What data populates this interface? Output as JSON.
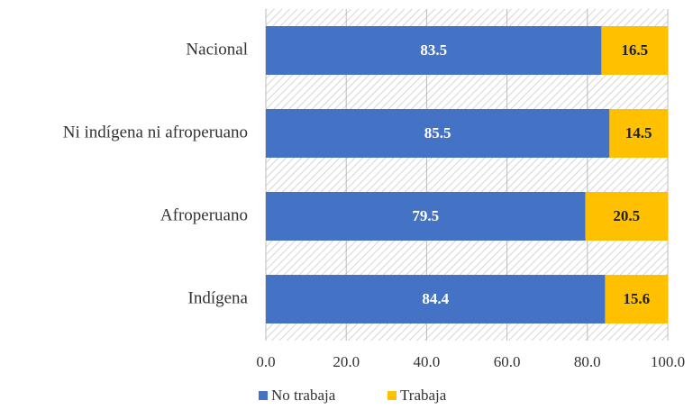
{
  "chart_data": {
    "type": "bar",
    "orientation": "horizontal",
    "stacked": true,
    "categories": [
      "Nacional",
      "Ni indígena ni afroperuano",
      "Afroperuano",
      "Indígena"
    ],
    "series": [
      {
        "name": "No trabaja",
        "color": "#4472c4",
        "values": [
          83.5,
          85.5,
          79.5,
          84.4
        ]
      },
      {
        "name": "Trabaja",
        "color": "#ffc000",
        "values": [
          16.5,
          14.5,
          20.5,
          15.6
        ]
      }
    ],
    "xlim": [
      0,
      100
    ],
    "xticks": [
      {
        "value": 0,
        "label": "0.0"
      },
      {
        "value": 20,
        "label": "20.0"
      },
      {
        "value": 40,
        "label": "40.0"
      },
      {
        "value": 60,
        "label": "60.0"
      },
      {
        "value": 80,
        "label": "80.0"
      },
      {
        "value": 100,
        "label": "100.0"
      }
    ],
    "grid": true,
    "legend": "bottom"
  }
}
